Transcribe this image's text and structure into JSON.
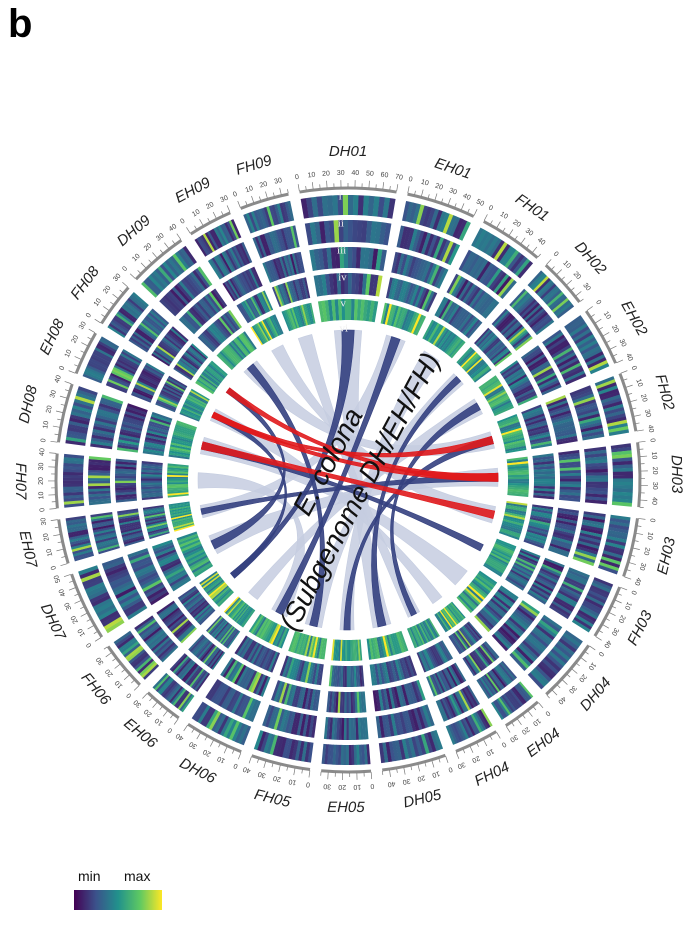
{
  "panel_letter": "b",
  "center": {
    "line1": "E. colona",
    "line2": "(Subgenome DH/EH/FH)"
  },
  "ring_labels": [
    "i",
    "ii",
    "iii",
    "iv",
    "v",
    "vi"
  ],
  "legend": {
    "min": "min",
    "max": "max",
    "colors": [
      "#440154",
      "#3b528b",
      "#21918c",
      "#5ec962",
      "#fde725"
    ]
  },
  "chromosomes": [
    {
      "name": "DH01",
      "span": 19.5
    },
    {
      "name": "EH01",
      "span": 14
    },
    {
      "name": "FH01",
      "span": 13
    },
    {
      "name": "DH02",
      "span": 10
    },
    {
      "name": "EH02",
      "span": 12
    },
    {
      "name": "FH02",
      "span": 12
    },
    {
      "name": "DH03",
      "span": 13
    },
    {
      "name": "EH03",
      "span": 12
    },
    {
      "name": "FH03",
      "span": 11
    },
    {
      "name": "DH04",
      "span": 13
    },
    {
      "name": "EH04",
      "span": 8
    },
    {
      "name": "FH04",
      "span": 9
    },
    {
      "name": "DH05",
      "span": 13
    },
    {
      "name": "EH05",
      "span": 10
    },
    {
      "name": "FH05",
      "span": 12
    },
    {
      "name": "DH06",
      "span": 12
    },
    {
      "name": "EH06",
      "span": 8
    },
    {
      "name": "FH06",
      "span": 10
    },
    {
      "name": "DH07",
      "span": 14
    },
    {
      "name": "EH07",
      "span": 9
    },
    {
      "name": "FH07",
      "span": 11
    },
    {
      "name": "DH08",
      "span": 12
    },
    {
      "name": "EH08",
      "span": 9
    },
    {
      "name": "FH08",
      "span": 9
    },
    {
      "name": "DH09",
      "span": 12
    },
    {
      "name": "EH09",
      "span": 9
    },
    {
      "name": "FH09",
      "span": 10
    }
  ],
  "links": [
    {
      "from": 0,
      "to": 12,
      "type": "collinear"
    },
    {
      "from": 1,
      "to": 19,
      "type": "collinear"
    },
    {
      "from": 2,
      "to": 13,
      "type": "collinear"
    },
    {
      "from": 3,
      "to": 14,
      "type": "collinear"
    },
    {
      "from": 4,
      "to": 16,
      "type": "collinear"
    },
    {
      "from": 5,
      "to": 24,
      "type": "collinear"
    },
    {
      "from": 6,
      "to": 18,
      "type": "collinear"
    },
    {
      "from": 7,
      "to": 25,
      "type": "collinear"
    },
    {
      "from": 9,
      "to": 21,
      "type": "collinear"
    },
    {
      "from": 10,
      "to": 22,
      "type": "collinear"
    },
    {
      "from": 11,
      "to": 26,
      "type": "collinear"
    },
    {
      "from": 15,
      "to": 20,
      "type": "collinear"
    },
    {
      "from": 0,
      "to": 17,
      "type": "highlight-blue"
    },
    {
      "from": 1,
      "to": 15,
      "type": "highlight-blue"
    },
    {
      "from": 3,
      "to": 12,
      "type": "highlight-blue"
    },
    {
      "from": 4,
      "to": 11,
      "type": "highlight-blue"
    },
    {
      "from": 5,
      "to": 13,
      "type": "highlight-blue"
    },
    {
      "from": 6,
      "to": 19,
      "type": "highlight-blue"
    },
    {
      "from": 8,
      "to": 21,
      "type": "highlight-blue"
    },
    {
      "from": 17,
      "to": 22,
      "type": "highlight-blue"
    },
    {
      "from": 18,
      "to": 23,
      "type": "highlight-blue"
    },
    {
      "from": 24,
      "to": 14,
      "type": "highlight-blue"
    },
    {
      "from": 22,
      "to": 6,
      "type": "highlight-red"
    },
    {
      "from": 21,
      "to": 7,
      "type": "highlight-red"
    },
    {
      "from": 23,
      "to": 6,
      "type": "highlight-red"
    },
    {
      "from": 22,
      "to": 5,
      "type": "highlight-red"
    }
  ]
}
